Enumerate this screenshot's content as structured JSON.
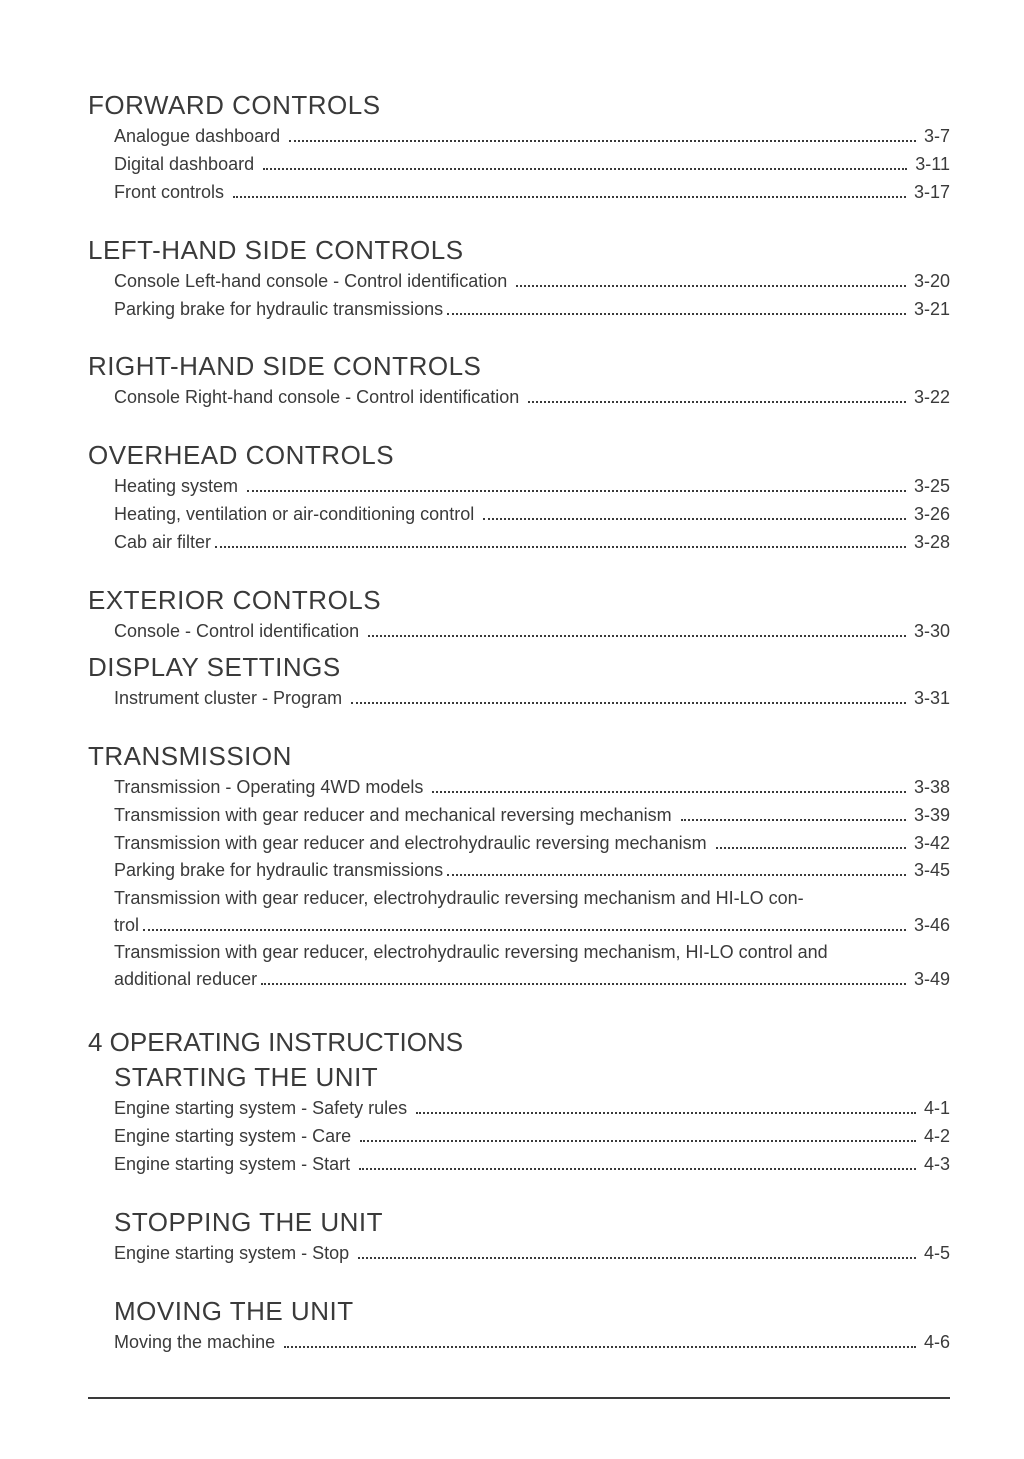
{
  "sections": [
    {
      "title": "FORWARD CONTROLS",
      "entries": [
        {
          "label": "Analogue dashboard ",
          "page": " 3-7"
        },
        {
          "label": "Digital dashboard ",
          "page": " 3-11"
        },
        {
          "label": "Front controls ",
          "page": " 3-17"
        }
      ]
    },
    {
      "title": "LEFT-HAND SIDE CONTROLS",
      "entries": [
        {
          "label": "Console Left-hand console - Control identification ",
          "page": " 3-20"
        },
        {
          "label": "Parking brake for hydraulic transmissions",
          "page": " 3-21"
        }
      ]
    },
    {
      "title": "RIGHT-HAND SIDE CONTROLS",
      "entries": [
        {
          "label": "Console Right-hand console - Control identification ",
          "page": " 3-22"
        }
      ]
    },
    {
      "title": "OVERHEAD CONTROLS",
      "entries": [
        {
          "label": "Heating system ",
          "page": " 3-25"
        },
        {
          "label": "Heating, ventilation or air-conditioning control ",
          "page": " 3-26"
        },
        {
          "label": "Cab air filter",
          "page": " 3-28"
        }
      ]
    },
    {
      "title": "EXTERIOR CONTROLS",
      "entries": [
        {
          "label": "Console - Control identification ",
          "page": " 3-30"
        }
      ]
    },
    {
      "title": "DISPLAY SETTINGS",
      "tight": true,
      "entries": [
        {
          "label": "Instrument cluster - Program ",
          "page": " 3-31"
        }
      ]
    },
    {
      "title": "TRANSMISSION",
      "entries": [
        {
          "label": "Transmission - Operating 4WD models ",
          "page": " 3-38"
        },
        {
          "label": "Transmission with gear reducer and mechanical reversing mechanism ",
          "page": " 3-39"
        },
        {
          "label": "Transmission with gear reducer and electrohydraulic reversing mechanism ",
          "page": " 3-42"
        },
        {
          "label": "Parking brake for hydraulic transmissions",
          "page": " 3-45"
        },
        {
          "multiline": true,
          "line1": "Transmission with gear reducer, electrohydraulic reversing mechanism and HI-LO con-",
          "tail": "trol ",
          "page": " 3-46"
        },
        {
          "multiline": true,
          "line1": "Transmission with gear reducer, electrohydraulic reversing mechanism, HI-LO control and",
          "tail": "additional reducer ",
          "page": " 3-49"
        }
      ]
    }
  ],
  "chapter": {
    "title": "4 OPERATING INSTRUCTIONS",
    "sections": [
      {
        "title": "STARTING THE UNIT",
        "entries": [
          {
            "label": "Engine starting system - Safety rules ",
            "page": " 4-1"
          },
          {
            "label": "Engine starting system - Care ",
            "page": " 4-2"
          },
          {
            "label": "Engine starting system - Start ",
            "page": " 4-3"
          }
        ]
      },
      {
        "title": "STOPPING THE UNIT",
        "entries": [
          {
            "label": "Engine starting system - Stop ",
            "page": " 4-5"
          }
        ]
      },
      {
        "title": "MOVING THE UNIT",
        "entries": [
          {
            "label": "Moving the machine ",
            "page": " 4-6"
          }
        ]
      }
    ]
  }
}
